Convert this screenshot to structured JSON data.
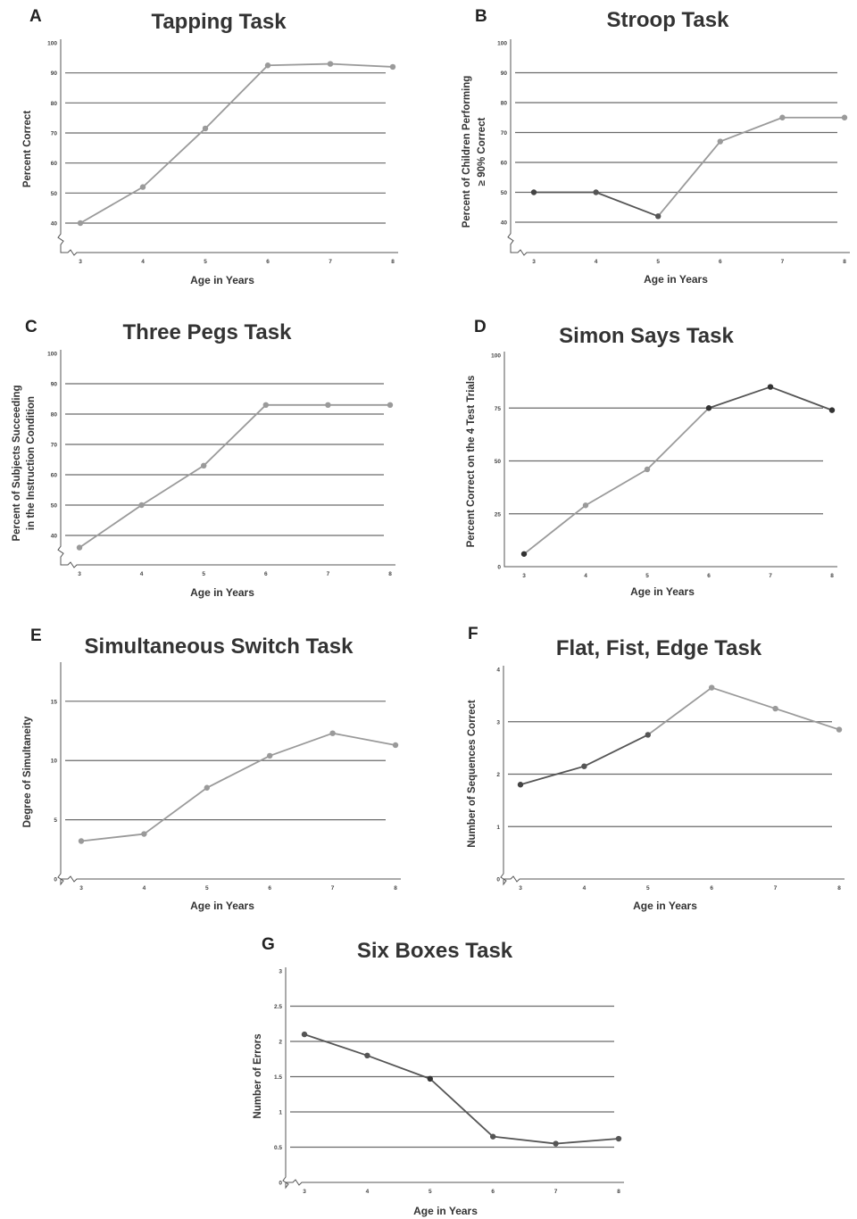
{
  "chart_data": [
    {
      "panel": "A",
      "type": "line",
      "title": "Tapping Task",
      "xlabel": "Age in Years",
      "ylabel": [
        "Percent Correct"
      ],
      "ylim": [
        40,
        100
      ],
      "yticks": [
        "40",
        "50",
        "60",
        "70",
        "80",
        "90",
        "100"
      ],
      "gridlines": [
        40,
        50,
        60,
        70,
        80,
        90
      ],
      "axis_break": true,
      "x": [
        3,
        4,
        5,
        6,
        7,
        8
      ],
      "xticks": [
        "3",
        "4",
        "5",
        "6",
        "7",
        "8"
      ],
      "series": [
        {
          "values": [
            40,
            52,
            71.5,
            92.5,
            93,
            92
          ]
        }
      ],
      "color": "#9a9a9a",
      "point_colors": [
        "#9a9a9a",
        "#9a9a9a",
        "#9a9a9a",
        "#9a9a9a",
        "#9a9a9a",
        "#9a9a9a"
      ],
      "grid": true
    },
    {
      "panel": "B",
      "type": "line",
      "title": "Stroop Task",
      "xlabel": "Age in Years",
      "ylabel": [
        "Percent of Children Performing",
        "≥ 90% Correct"
      ],
      "ylim": [
        40,
        100
      ],
      "yticks": [
        "40",
        "50",
        "60",
        "70",
        "80",
        "90",
        "100"
      ],
      "gridlines": [
        40,
        50,
        60,
        70,
        80,
        90
      ],
      "axis_break": true,
      "x": [
        3,
        4,
        5,
        6,
        7,
        8
      ],
      "xticks": [
        "3",
        "4",
        "5",
        "6",
        "7",
        "8"
      ],
      "series": [
        {
          "values": [
            50,
            50,
            42,
            67,
            75,
            75
          ]
        }
      ],
      "color": "#9a9a9a",
      "segment_colors": [
        "#555555",
        "#555555",
        "#9a9a9a",
        "#9a9a9a",
        "#9a9a9a"
      ],
      "point_colors": [
        "#444444",
        "#555555",
        "#555555",
        "#9a9a9a",
        "#9a9a9a",
        "#9a9a9a"
      ],
      "grid": true
    },
    {
      "panel": "C",
      "type": "line",
      "title": "Three Pegs Task",
      "xlabel": "Age in Years",
      "ylabel": [
        "Percent of Subjects Succeeding",
        "in the Instruction Condition"
      ],
      "ylim": [
        40,
        100
      ],
      "yticks": [
        "40",
        "50",
        "60",
        "70",
        "80",
        "90",
        "100"
      ],
      "gridlines": [
        40,
        50,
        60,
        70,
        80,
        90
      ],
      "axis_break": true,
      "x": [
        3,
        4,
        5,
        6,
        7,
        8
      ],
      "xticks": [
        "3",
        "4",
        "5",
        "6",
        "7",
        "8"
      ],
      "series": [
        {
          "values": [
            36,
            50,
            63,
            83,
            83,
            83
          ]
        }
      ],
      "color": "#9a9a9a",
      "point_colors": [
        "#9a9a9a",
        "#9a9a9a",
        "#9a9a9a",
        "#9a9a9a",
        "#9a9a9a",
        "#9a9a9a"
      ],
      "grid": true
    },
    {
      "panel": "D",
      "type": "line",
      "title": "Simon Says Task",
      "xlabel": "Age in Years",
      "ylabel": [
        "Percent Correct on the 4 Test Trials"
      ],
      "ylim": [
        0,
        100
      ],
      "yticks": [
        "0",
        "25",
        "50",
        "75",
        "100"
      ],
      "gridlines": [
        25,
        50,
        75
      ],
      "axis_break": false,
      "x": [
        3,
        4,
        5,
        6,
        7,
        8
      ],
      "xticks": [
        "3",
        "4",
        "5",
        "6",
        "7",
        "8"
      ],
      "series": [
        {
          "values": [
            6,
            29,
            46,
            75,
            85,
            74
          ]
        }
      ],
      "color": "#9a9a9a",
      "segment_colors": [
        "#9a9a9a",
        "#9a9a9a",
        "#9a9a9a",
        "#555555",
        "#555555"
      ],
      "point_colors": [
        "#333333",
        "#9a9a9a",
        "#9a9a9a",
        "#333333",
        "#333333",
        "#333333"
      ],
      "grid": true
    },
    {
      "panel": "E",
      "type": "line",
      "title": "Simultaneous Switch Task",
      "xlabel": "Age in Years",
      "ylabel": [
        "Degree of Simultaneity"
      ],
      "ylim": [
        0,
        18
      ],
      "yticks": [
        "0",
        "5",
        "10",
        "15"
      ],
      "yticks_at": [
        0,
        5,
        10,
        15
      ],
      "gridlines": [
        5,
        10,
        15
      ],
      "axis_break": true,
      "x": [
        3,
        4,
        5,
        6,
        7,
        8
      ],
      "xticks": [
        "3",
        "4",
        "5",
        "6",
        "7",
        "8"
      ],
      "series": [
        {
          "values": [
            3.2,
            3.8,
            7.7,
            10.4,
            12.3,
            11.3
          ]
        }
      ],
      "color": "#9a9a9a",
      "point_colors": [
        "#9a9a9a",
        "#9a9a9a",
        "#9a9a9a",
        "#9a9a9a",
        "#9a9a9a",
        "#9a9a9a"
      ],
      "grid": true
    },
    {
      "panel": "F",
      "type": "line",
      "title": "Flat, Fist, Edge Task",
      "xlabel": "Age in Years",
      "ylabel": [
        "Number of Sequences Correct"
      ],
      "ylim": [
        0,
        4
      ],
      "yticks": [
        "0",
        "1",
        "2",
        "3",
        "4"
      ],
      "gridlines": [
        1,
        2,
        3
      ],
      "axis_break": true,
      "x": [
        3,
        4,
        5,
        6,
        7,
        8
      ],
      "xticks": [
        "3",
        "4",
        "5",
        "6",
        "7",
        "8"
      ],
      "series": [
        {
          "values": [
            1.8,
            2.15,
            2.75,
            3.65,
            3.25,
            2.85
          ]
        }
      ],
      "color": "#9a9a9a",
      "segment_colors": [
        "#555555",
        "#555555",
        "#9a9a9a",
        "#9a9a9a",
        "#9a9a9a"
      ],
      "point_colors": [
        "#444444",
        "#555555",
        "#555555",
        "#9a9a9a",
        "#9a9a9a",
        "#9a9a9a"
      ],
      "grid": true
    },
    {
      "panel": "G",
      "type": "line",
      "title": "Six Boxes Task",
      "xlabel": "Age in Years",
      "ylabel": [
        "Number of Errors"
      ],
      "ylim": [
        0,
        3
      ],
      "yticks": [
        "0",
        "0.5",
        "1",
        "1.5",
        "2",
        "2.5",
        "3"
      ],
      "gridlines": [
        0.5,
        1,
        1.5,
        2,
        2.5
      ],
      "axis_break": true,
      "x": [
        3,
        4,
        5,
        6,
        7,
        8
      ],
      "xticks": [
        "3",
        "4",
        "5",
        "6",
        "7",
        "8"
      ],
      "series": [
        {
          "values": [
            2.1,
            1.8,
            1.47,
            0.65,
            0.55,
            0.62
          ]
        }
      ],
      "color": "#555555",
      "point_colors": [
        "#555555",
        "#555555",
        "#333333",
        "#555555",
        "#555555",
        "#555555"
      ],
      "grid": true
    }
  ]
}
